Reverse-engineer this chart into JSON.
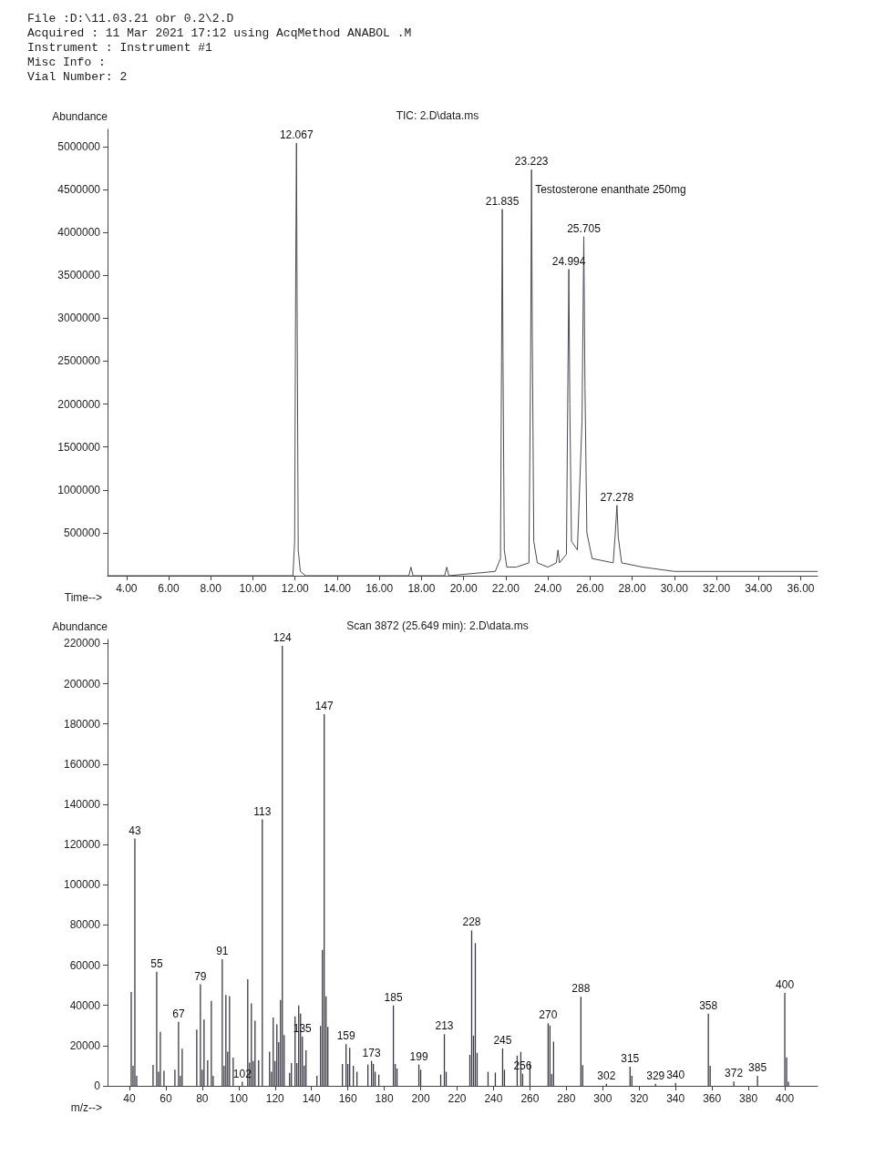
{
  "chart_data": [
    {
      "type": "line",
      "title": "TIC: 2.D\\data.ms",
      "xlabel": "Time-->",
      "ylabel": "Abundance",
      "color": "#4a4a55",
      "annotations": [
        "File :D:\\11.03.21 obr 0.2\\2.D",
        "Acquired : 11 Mar 2021 17:12 using AcqMethod ANABOL .M",
        "Instrument : Instrument #1",
        "Misc Info :",
        "Vial Number: 2",
        {
          "text": "12.067",
          "x": 12.067,
          "y": 5040000
        },
        {
          "text": "21.835",
          "x": 21.835,
          "y": 4270000
        },
        {
          "text": "23.223",
          "x": 23.223,
          "y": 4730000
        },
        {
          "text": "Testosterone enanthate 250mg",
          "x": 23.223,
          "y": 4400000
        },
        {
          "text": "24.994",
          "x": 24.994,
          "y": 3570000
        },
        {
          "text": "25.705",
          "x": 25.705,
          "y": 3950000
        },
        {
          "text": "27.278",
          "x": 27.278,
          "y": 820000
        }
      ],
      "x": [
        3.1,
        11.9,
        11.98,
        12.03,
        12.067,
        12.1,
        12.15,
        12.25,
        12.5,
        17.4,
        17.5,
        17.6,
        19.1,
        19.2,
        19.3,
        21.5,
        21.75,
        21.8,
        21.835,
        21.87,
        21.93,
        22.05,
        22.5,
        23.1,
        23.18,
        23.223,
        23.26,
        23.33,
        23.5,
        24.0,
        24.4,
        24.48,
        24.55,
        24.88,
        24.94,
        24.994,
        25.04,
        25.12,
        25.4,
        25.62,
        25.705,
        25.76,
        25.85,
        26.1,
        27.1,
        27.2,
        27.278,
        27.34,
        27.5,
        28.5,
        30,
        36.8
      ],
      "values": [
        0,
        0,
        400000,
        3500000,
        5040000,
        3000000,
        300000,
        50000,
        0,
        0,
        100000,
        0,
        0,
        100000,
        0,
        50000,
        200000,
        2500000,
        4270000,
        2500000,
        300000,
        100000,
        100000,
        150000,
        2500000,
        4730000,
        2800000,
        400000,
        150000,
        100000,
        150000,
        300000,
        150000,
        250000,
        2000000,
        3570000,
        2000000,
        400000,
        300000,
        1800000,
        3950000,
        2200000,
        500000,
        200000,
        150000,
        500000,
        820000,
        450000,
        150000,
        100000,
        50000,
        50000
      ],
      "xlim": [
        3.1,
        36.8
      ],
      "ylim": [
        0,
        5200000
      ],
      "xticks": [
        {
          "value": 4,
          "label": "4.00"
        },
        {
          "value": 6,
          "label": "6.00"
        },
        {
          "value": 8,
          "label": "8.00"
        },
        {
          "value": 10,
          "label": "10.00"
        },
        {
          "value": 12,
          "label": "12.00"
        },
        {
          "value": 14,
          "label": "14.00"
        },
        {
          "value": 16,
          "label": "16.00"
        },
        {
          "value": 18,
          "label": "18.00"
        },
        {
          "value": 20,
          "label": "20.00"
        },
        {
          "value": 22,
          "label": "22.00"
        },
        {
          "value": 24,
          "label": "24.00"
        },
        {
          "value": 26,
          "label": "26.00"
        },
        {
          "value": 28,
          "label": "28.00"
        },
        {
          "value": 30,
          "label": "30.00"
        },
        {
          "value": 32,
          "label": "32.00"
        },
        {
          "value": 34,
          "label": "34.00"
        },
        {
          "value": 36,
          "label": "36.00"
        }
      ],
      "yticks": [
        500000,
        1000000,
        1500000,
        2000000,
        2500000,
        3000000,
        3500000,
        4000000,
        4500000,
        5000000
      ],
      "grid": false,
      "marker": "none",
      "line_style": "solid"
    },
    {
      "type": "bar",
      "title": "Scan 3872 (25.649 min): 2.D\\data.ms",
      "xlabel": "m/z-->",
      "ylabel": "Abundance",
      "color": "#3a3a45",
      "annotations": [
        {
          "text": "43",
          "x": 43,
          "y": 123000
        },
        {
          "text": "55",
          "x": 55,
          "y": 56700
        },
        {
          "text": "67",
          "x": 67,
          "y": 31800
        },
        {
          "text": "79",
          "x": 79,
          "y": 50500
        },
        {
          "text": "91",
          "x": 91,
          "y": 63000
        },
        {
          "text": "102",
          "x": 102,
          "y": 2000
        },
        {
          "text": "113",
          "x": 113,
          "y": 132500
        },
        {
          "text": "124",
          "x": 124,
          "y": 218800
        },
        {
          "text": "135",
          "x": 135,
          "y": 24500
        },
        {
          "text": "147",
          "x": 147,
          "y": 184900
        },
        {
          "text": "159",
          "x": 159,
          "y": 20700
        },
        {
          "text": "173",
          "x": 173,
          "y": 12400
        },
        {
          "text": "185",
          "x": 185,
          "y": 40000
        },
        {
          "text": "199",
          "x": 199,
          "y": 10600
        },
        {
          "text": "213",
          "x": 213,
          "y": 25700
        },
        {
          "text": "228",
          "x": 228,
          "y": 77300
        },
        {
          "text": "245",
          "x": 245,
          "y": 18600
        },
        {
          "text": "256",
          "x": 256,
          "y": 6000
        },
        {
          "text": "270",
          "x": 270,
          "y": 31100
        },
        {
          "text": "288",
          "x": 288,
          "y": 44300
        },
        {
          "text": "302",
          "x": 302,
          "y": 1000
        },
        {
          "text": "315",
          "x": 315,
          "y": 9500
        },
        {
          "text": "329",
          "x": 329,
          "y": 1000
        },
        {
          "text": "340",
          "x": 340,
          "y": 1500
        },
        {
          "text": "358",
          "x": 358,
          "y": 35900
        },
        {
          "text": "372",
          "x": 372,
          "y": 2200
        },
        {
          "text": "385",
          "x": 385,
          "y": 5000
        },
        {
          "text": "400",
          "x": 400,
          "y": 46200
        }
      ],
      "x": [
        41,
        42,
        43,
        44,
        53,
        55,
        56,
        57,
        59,
        65,
        67,
        68,
        69,
        77,
        79,
        80,
        81,
        83,
        85,
        86,
        91,
        92,
        93,
        94,
        95,
        97,
        102,
        105,
        106,
        107,
        108,
        109,
        111,
        113,
        117,
        118,
        119,
        120,
        121,
        122,
        123,
        124,
        125,
        128,
        129,
        131,
        132,
        133,
        134,
        135,
        136,
        137,
        143,
        145,
        146,
        147,
        148,
        149,
        157,
        159,
        160,
        161,
        163,
        165,
        171,
        173,
        174,
        175,
        177,
        185,
        186,
        187,
        199,
        200,
        211,
        213,
        214,
        227,
        228,
        229,
        230,
        231,
        237,
        241,
        245,
        246,
        253,
        255,
        256,
        260,
        270,
        271,
        272,
        273,
        288,
        289,
        302,
        315,
        316,
        329,
        340,
        358,
        359,
        372,
        385,
        400,
        401,
        402
      ],
      "values": [
        46700,
        10000,
        123000,
        5000,
        10400,
        56700,
        7000,
        26800,
        7500,
        8000,
        31800,
        5000,
        18500,
        28000,
        50500,
        8000,
        33000,
        12700,
        42200,
        5000,
        63000,
        10000,
        45200,
        17000,
        44600,
        14000,
        2000,
        53000,
        11600,
        41000,
        12400,
        32400,
        12700,
        132500,
        17000,
        7000,
        34000,
        12400,
        30600,
        21800,
        42700,
        218800,
        25300,
        6400,
        11300,
        34600,
        11300,
        40000,
        35900,
        24500,
        10000,
        17700,
        5000,
        29800,
        67600,
        184900,
        44500,
        29300,
        10900,
        20700,
        10900,
        18900,
        10000,
        7000,
        10600,
        12400,
        10900,
        7000,
        5600,
        40000,
        10900,
        8600,
        10600,
        8000,
        5600,
        25700,
        7000,
        15400,
        77300,
        25000,
        71000,
        16400,
        7000,
        6600,
        18600,
        8000,
        15000,
        16900,
        6000,
        11300,
        31100,
        30000,
        5900,
        22000,
        44300,
        10300,
        1000,
        9500,
        5000,
        1000,
        1500,
        35900,
        10000,
        2200,
        5000,
        46200,
        14200,
        2000
      ],
      "xlim": [
        28,
        418
      ],
      "ylim": [
        0,
        222000
      ],
      "xticks": [
        40,
        60,
        80,
        100,
        120,
        140,
        160,
        180,
        200,
        220,
        240,
        260,
        280,
        300,
        320,
        340,
        360,
        380,
        400
      ],
      "yticks": [
        0,
        20000,
        40000,
        60000,
        80000,
        100000,
        120000,
        140000,
        160000,
        180000,
        200000,
        220000
      ],
      "grid": false
    }
  ]
}
